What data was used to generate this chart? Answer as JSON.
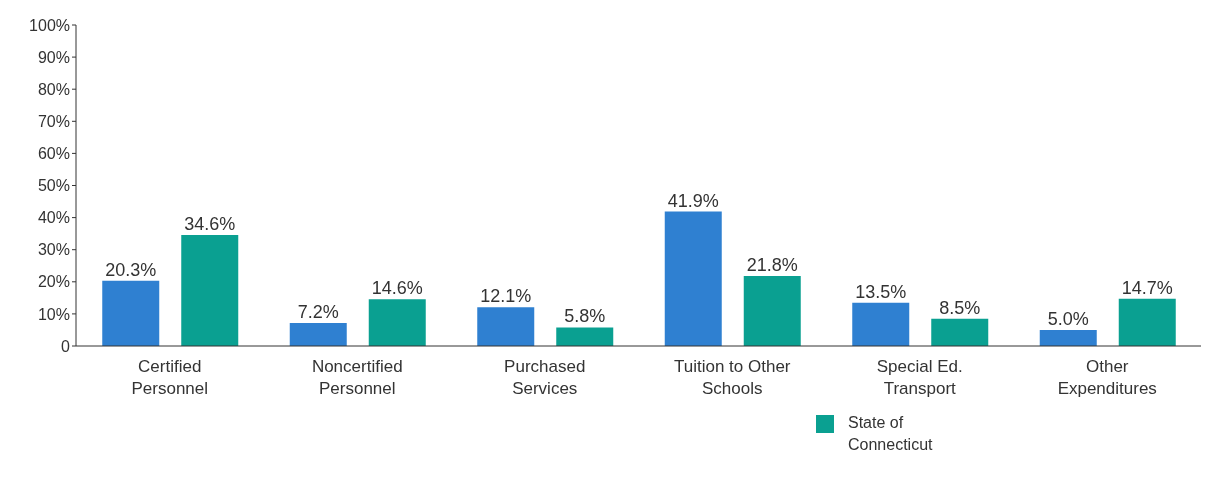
{
  "chart_data": {
    "type": "bar",
    "categories": [
      "Certified Personnel",
      "Noncertified Personnel",
      "Purchased Services",
      "Tuition to Other Schools",
      "Special Ed. Transport",
      "Other Expenditures"
    ],
    "series": [
      {
        "color": "#2f80d1",
        "values": [
          20.3,
          7.2,
          12.1,
          41.9,
          13.5,
          5.0
        ],
        "value_labels": [
          "20.3%",
          "7.2%",
          "12.1%",
          "41.9%",
          "13.5%",
          "5.0%"
        ]
      },
      {
        "name": "State of Connecticut",
        "color": "#0aa091",
        "values": [
          34.6,
          14.6,
          5.8,
          21.8,
          8.5,
          14.7
        ],
        "value_labels": [
          "34.6%",
          "14.6%",
          "5.8%",
          "21.8%",
          "8.5%",
          "14.7%"
        ]
      }
    ],
    "ylim": [
      0,
      100
    ],
    "yticks": [
      {
        "value": 0,
        "label": "0"
      },
      {
        "value": 10,
        "label": "10%"
      },
      {
        "value": 20,
        "label": "20%"
      },
      {
        "value": 30,
        "label": "30%"
      },
      {
        "value": 40,
        "label": "40%"
      },
      {
        "value": 50,
        "label": "50%"
      },
      {
        "value": 60,
        "label": "60%"
      },
      {
        "value": 70,
        "label": "70%"
      },
      {
        "value": 80,
        "label": "80%"
      },
      {
        "value": 90,
        "label": "90%"
      },
      {
        "value": 100,
        "label": "100%"
      }
    ],
    "grid": false,
    "legend": "bottom"
  }
}
